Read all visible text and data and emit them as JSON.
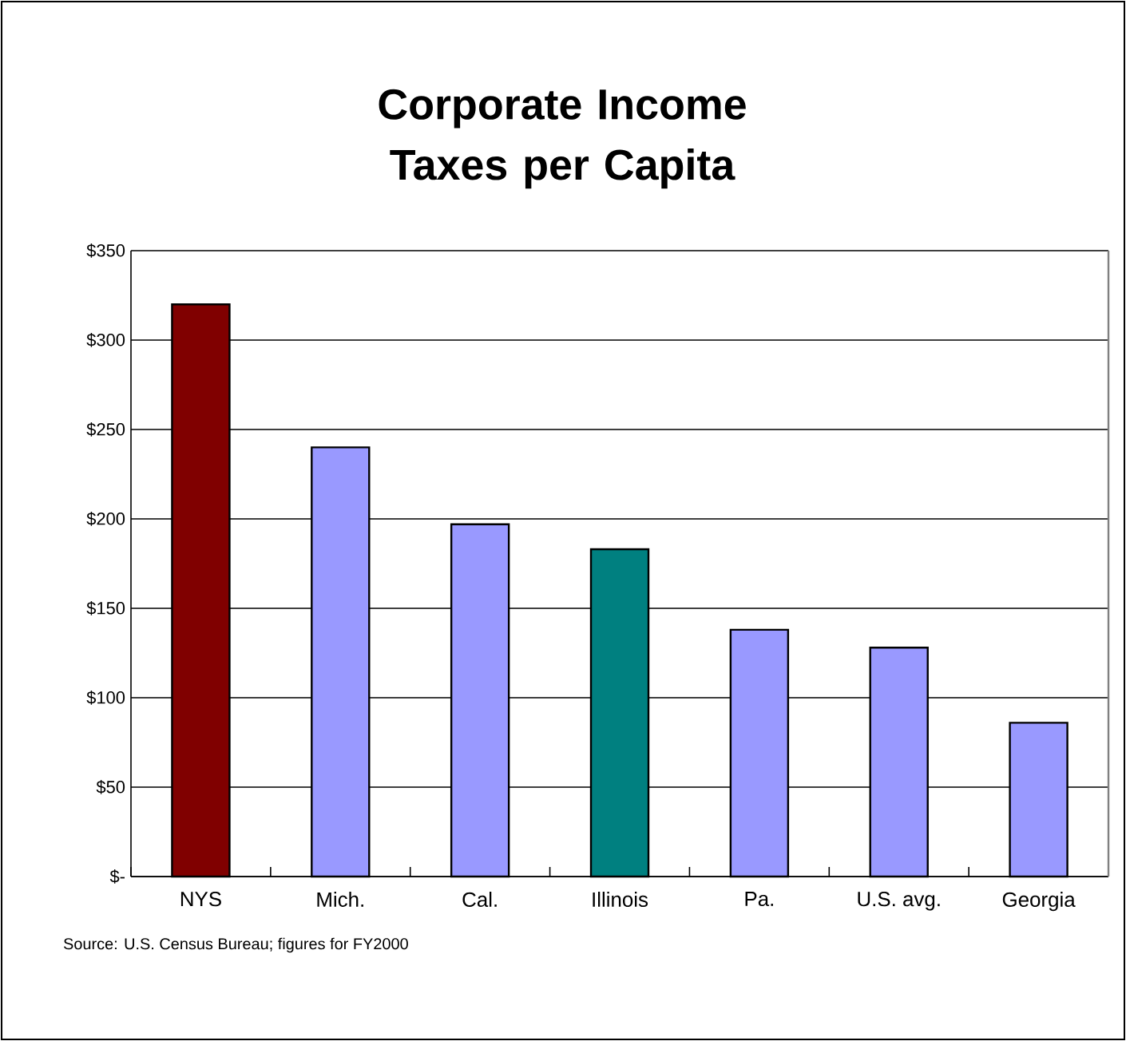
{
  "chart_data": {
    "type": "bar",
    "title": "Corporate Income Taxes per Capita",
    "categories": [
      "NYS",
      "Mich.",
      "Cal.",
      "Illinois",
      "Pa.",
      "U.S. avg.",
      "Georgia"
    ],
    "values": [
      320,
      240,
      197,
      183,
      138,
      128,
      86
    ],
    "colors": [
      "#800000",
      "#9999ff",
      "#9999ff",
      "#008080",
      "#9999ff",
      "#9999ff",
      "#9999ff"
    ],
    "ylim": [
      0,
      350
    ],
    "yticks": [
      {
        "value": 0,
        "label": "$-"
      },
      {
        "value": 50,
        "label": "$50"
      },
      {
        "value": 100,
        "label": "$100"
      },
      {
        "value": 150,
        "label": "$150"
      },
      {
        "value": 200,
        "label": "$200"
      },
      {
        "value": 250,
        "label": "$250"
      },
      {
        "value": 300,
        "label": "$300"
      },
      {
        "value": 350,
        "label": "$350"
      }
    ],
    "grid": "y",
    "annotations": [
      "Source: U.S. Census Bureau; figures for FY2000"
    ]
  }
}
